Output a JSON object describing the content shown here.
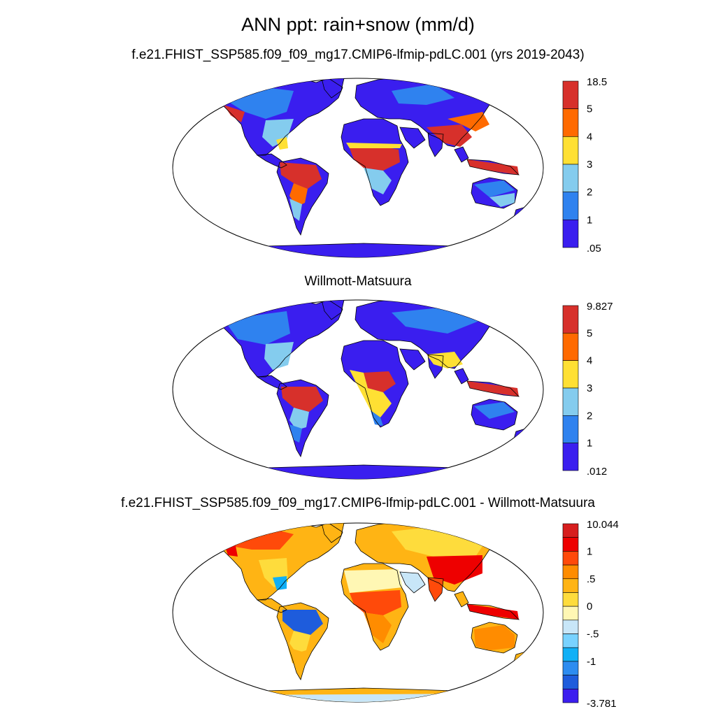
{
  "figure": {
    "title": "ANN ppt: rain+snow (mm/d)",
    "subtitle": "f.e21.FHIST_SSP585.f09_f09_mg17.CMIP6-lfmip-pdLC.001 (yrs 2019-2043)",
    "panels": [
      {
        "id": "model",
        "title": "",
        "colorbar": {
          "labels": [
            "18.5",
            "5",
            "4",
            "3",
            "2",
            "1",
            ".05"
          ],
          "colors": [
            "#d7302b",
            "#ff6a00",
            "#ffe033",
            "#84ccee",
            "#2f82ef",
            "#3a1eef"
          ]
        }
      },
      {
        "id": "obs",
        "title": "Willmott-Matsuura",
        "colorbar": {
          "labels": [
            "9.827",
            "5",
            "4",
            "3",
            "2",
            "1",
            ".012"
          ],
          "colors": [
            "#d7302b",
            "#ff6a00",
            "#ffe033",
            "#84ccee",
            "#2f82ef",
            "#3a1eef"
          ]
        }
      },
      {
        "id": "diff",
        "title": "f.e21.FHIST_SSP585.f09_f09_mg17.CMIP6-lfmip-pdLC.001 - Willmott-Matsuura",
        "colorbar": {
          "labels": [
            "10.044",
            "1",
            ".5",
            "0",
            "-.5",
            "-1",
            "-3.781"
          ],
          "colors": [
            "#d71e1e",
            "#ee0000",
            "#ff4a0a",
            "#ff8c00",
            "#ffb414",
            "#fedc3c",
            "#fff7b4",
            "#c8e6f8",
            "#78d2ff",
            "#10b0f6",
            "#2d8cf0",
            "#1e5cdc",
            "#3c1eef"
          ]
        }
      }
    ]
  }
}
